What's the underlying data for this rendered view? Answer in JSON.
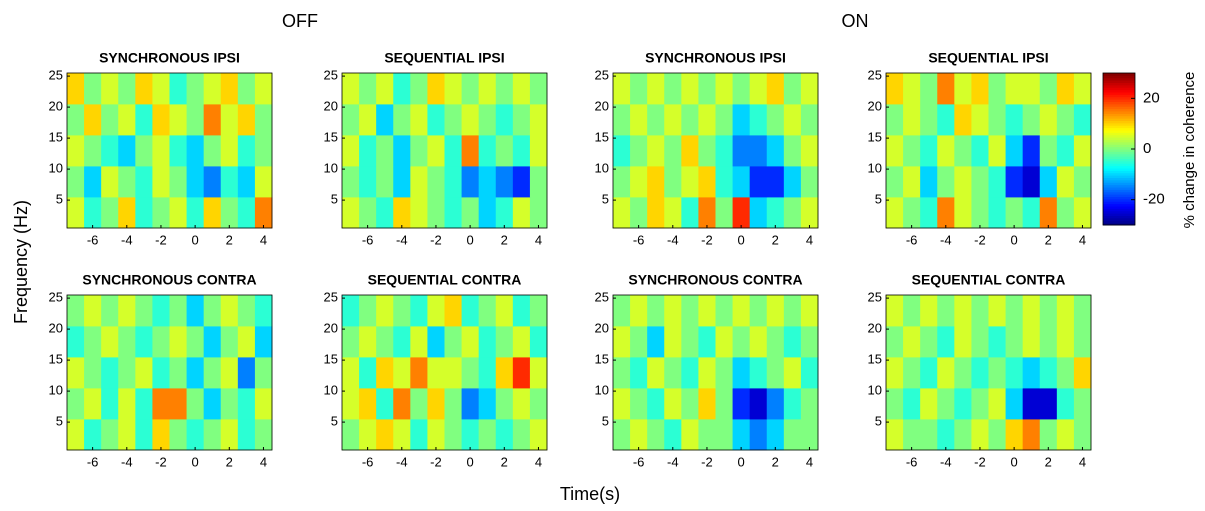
{
  "group_labels": [
    "OFF",
    "ON"
  ],
  "xlabel": "Time(s)",
  "ylabel": "Frequency (Hz)",
  "colorbar": {
    "label": "% change in coherence",
    "zlim": [
      -30,
      30
    ],
    "ticks": [
      20,
      0,
      -20
    ],
    "colormap": "jet"
  },
  "chart_data": [
    {
      "type": "heatmap",
      "title": "SYNCHRONOUS IPSI",
      "x": [
        -7,
        -6,
        -5,
        -4,
        -3,
        -2,
        -1,
        0,
        1,
        2,
        3,
        4
      ],
      "y": [
        3,
        8,
        13,
        18,
        23
      ],
      "xlim": [
        -7.5,
        4.5
      ],
      "ylim": [
        0.5,
        25.5
      ],
      "xticks": [
        -6,
        -4,
        -2,
        0,
        2,
        4
      ],
      "yticks": [
        5,
        10,
        15,
        20,
        25
      ],
      "z": [
        [
          5,
          -5,
          0,
          10,
          -5,
          0,
          5,
          -5,
          10,
          0,
          -5,
          15
        ],
        [
          0,
          -10,
          5,
          0,
          -5,
          5,
          0,
          -10,
          -15,
          -5,
          -10,
          5
        ],
        [
          5,
          0,
          -5,
          -10,
          0,
          5,
          -5,
          -10,
          0,
          5,
          -5,
          0
        ],
        [
          0,
          10,
          0,
          5,
          -5,
          10,
          5,
          0,
          15,
          5,
          10,
          0
        ],
        [
          10,
          0,
          5,
          0,
          10,
          5,
          -5,
          0,
          5,
          10,
          0,
          5
        ]
      ]
    },
    {
      "type": "heatmap",
      "title": "SEQUENTIAL IPSI",
      "x": [
        -7,
        -6,
        -5,
        -4,
        -3,
        -2,
        -1,
        0,
        1,
        2,
        3,
        4
      ],
      "y": [
        3,
        8,
        13,
        18,
        23
      ],
      "xlim": [
        -7.5,
        4.5
      ],
      "ylim": [
        0.5,
        25.5
      ],
      "xticks": [
        -6,
        -4,
        -2,
        0,
        2,
        4
      ],
      "yticks": [
        5,
        10,
        15,
        20,
        25
      ],
      "z": [
        [
          5,
          0,
          -5,
          10,
          5,
          0,
          -5,
          0,
          -10,
          -5,
          5,
          0
        ],
        [
          0,
          -5,
          0,
          -10,
          5,
          0,
          -5,
          -15,
          -10,
          -15,
          -20,
          0
        ],
        [
          5,
          -5,
          0,
          -10,
          0,
          5,
          -5,
          15,
          -5,
          0,
          -5,
          5
        ],
        [
          0,
          5,
          -10,
          0,
          5,
          -5,
          0,
          5,
          0,
          -5,
          0,
          5
        ],
        [
          5,
          0,
          5,
          -5,
          0,
          10,
          5,
          0,
          5,
          0,
          5,
          0
        ]
      ]
    },
    {
      "type": "heatmap",
      "title": "SYNCHRONOUS IPSI",
      "x": [
        -7,
        -6,
        -5,
        -4,
        -3,
        -2,
        -1,
        0,
        1,
        2,
        3,
        4
      ],
      "y": [
        3,
        8,
        13,
        18,
        23
      ],
      "xlim": [
        -7.5,
        4.5
      ],
      "ylim": [
        0.5,
        25.5
      ],
      "xticks": [
        -6,
        -4,
        -2,
        0,
        2,
        4
      ],
      "yticks": [
        5,
        10,
        15,
        20,
        25
      ],
      "z": [
        [
          5,
          0,
          10,
          5,
          -5,
          15,
          0,
          20,
          -10,
          -5,
          0,
          5
        ],
        [
          0,
          5,
          10,
          0,
          5,
          10,
          -5,
          -10,
          -20,
          -20,
          -10,
          0
        ],
        [
          -5,
          0,
          5,
          0,
          10,
          0,
          -5,
          -15,
          -15,
          -10,
          0,
          5
        ],
        [
          0,
          5,
          0,
          5,
          0,
          5,
          0,
          -10,
          -5,
          0,
          5,
          0
        ],
        [
          5,
          0,
          5,
          0,
          5,
          0,
          5,
          0,
          5,
          10,
          0,
          5
        ]
      ]
    },
    {
      "type": "heatmap",
      "title": "SEQUENTIAL IPSI",
      "x": [
        -7,
        -6,
        -5,
        -4,
        -3,
        -2,
        -1,
        0,
        1,
        2,
        3,
        4
      ],
      "y": [
        3,
        8,
        13,
        18,
        23
      ],
      "xlim": [
        -7.5,
        4.5
      ],
      "ylim": [
        0.5,
        25.5
      ],
      "xticks": [
        -6,
        -4,
        -2,
        0,
        2,
        4
      ],
      "yticks": [
        5,
        10,
        15,
        20,
        25
      ],
      "z": [
        [
          5,
          0,
          -5,
          15,
          5,
          0,
          -5,
          0,
          -5,
          15,
          0,
          5
        ],
        [
          0,
          5,
          -10,
          0,
          5,
          0,
          -5,
          -20,
          -25,
          -10,
          5,
          0
        ],
        [
          5,
          0,
          -5,
          5,
          0,
          -5,
          5,
          -10,
          -20,
          0,
          -5,
          5
        ],
        [
          0,
          5,
          0,
          -5,
          10,
          5,
          0,
          -5,
          0,
          5,
          0,
          -5
        ],
        [
          10,
          5,
          0,
          15,
          5,
          10,
          0,
          5,
          5,
          0,
          10,
          5
        ]
      ]
    },
    {
      "type": "heatmap",
      "title": "SYNCHRONOUS CONTRA",
      "x": [
        -7,
        -6,
        -5,
        -4,
        -3,
        -2,
        -1,
        0,
        1,
        2,
        3,
        4
      ],
      "y": [
        3,
        8,
        13,
        18,
        23
      ],
      "xlim": [
        -7.5,
        4.5
      ],
      "ylim": [
        0.5,
        25.5
      ],
      "xticks": [
        -6,
        -4,
        -2,
        0,
        2,
        4
      ],
      "yticks": [
        5,
        10,
        15,
        20,
        25
      ],
      "z": [
        [
          5,
          -5,
          0,
          5,
          -5,
          10,
          0,
          -5,
          0,
          5,
          -5,
          0
        ],
        [
          0,
          5,
          -5,
          5,
          -5,
          15,
          15,
          0,
          -10,
          0,
          -5,
          5
        ],
        [
          5,
          0,
          -5,
          0,
          5,
          -5,
          0,
          -10,
          0,
          5,
          -15,
          0
        ],
        [
          -5,
          0,
          5,
          0,
          -5,
          0,
          5,
          0,
          -10,
          0,
          5,
          -10
        ],
        [
          0,
          5,
          0,
          5,
          0,
          -5,
          0,
          -10,
          0,
          5,
          0,
          -5
        ]
      ]
    },
    {
      "type": "heatmap",
      "title": "SEQUENTIAL CONTRA",
      "x": [
        -7,
        -6,
        -5,
        -4,
        -3,
        -2,
        -1,
        0,
        1,
        2,
        3,
        4
      ],
      "y": [
        3,
        8,
        13,
        18,
        23
      ],
      "xlim": [
        -7.5,
        4.5
      ],
      "ylim": [
        0.5,
        25.5
      ],
      "xticks": [
        -6,
        -4,
        -2,
        0,
        2,
        4
      ],
      "yticks": [
        5,
        10,
        15,
        20,
        25
      ],
      "z": [
        [
          0,
          5,
          10,
          5,
          -5,
          5,
          0,
          -5,
          0,
          -5,
          0,
          5
        ],
        [
          5,
          10,
          -5,
          15,
          0,
          10,
          0,
          -15,
          -10,
          0,
          5,
          0
        ],
        [
          5,
          -5,
          10,
          5,
          15,
          5,
          5,
          0,
          -5,
          10,
          20,
          5
        ],
        [
          0,
          5,
          0,
          -5,
          5,
          -10,
          0,
          5,
          -5,
          0,
          5,
          -5
        ],
        [
          -5,
          0,
          5,
          0,
          -5,
          5,
          10,
          -5,
          0,
          5,
          -5,
          0
        ]
      ]
    },
    {
      "type": "heatmap",
      "title": "SYNCHRONOUS CONTRA",
      "x": [
        -7,
        -6,
        -5,
        -4,
        -3,
        -2,
        -1,
        0,
        1,
        2,
        3,
        4
      ],
      "y": [
        3,
        8,
        13,
        18,
        23
      ],
      "xlim": [
        -7.5,
        4.5
      ],
      "ylim": [
        0.5,
        25.5
      ],
      "xticks": [
        -6,
        -4,
        -2,
        0,
        2,
        4
      ],
      "yticks": [
        5,
        10,
        15,
        20,
        25
      ],
      "z": [
        [
          0,
          5,
          0,
          -5,
          5,
          0,
          0,
          -10,
          -15,
          -10,
          0,
          0
        ],
        [
          5,
          0,
          -5,
          5,
          0,
          10,
          0,
          -20,
          -25,
          -15,
          -5,
          0
        ],
        [
          0,
          -5,
          5,
          0,
          -5,
          5,
          0,
          -10,
          -5,
          0,
          5,
          -5
        ],
        [
          5,
          0,
          -10,
          5,
          0,
          -5,
          5,
          0,
          5,
          0,
          -5,
          0
        ],
        [
          0,
          5,
          0,
          5,
          0,
          5,
          0,
          5,
          0,
          5,
          0,
          5
        ]
      ]
    },
    {
      "type": "heatmap",
      "title": "SEQUENTIAL CONTRA",
      "x": [
        -7,
        -6,
        -5,
        -4,
        -3,
        -2,
        -1,
        0,
        1,
        2,
        3,
        4
      ],
      "y": [
        3,
        8,
        13,
        18,
        23
      ],
      "xlim": [
        -7.5,
        4.5
      ],
      "ylim": [
        0.5,
        25.5
      ],
      "xticks": [
        -6,
        -4,
        -2,
        0,
        2,
        4
      ],
      "yticks": [
        5,
        10,
        15,
        20,
        25
      ],
      "z": [
        [
          5,
          0,
          0,
          -5,
          0,
          5,
          0,
          10,
          15,
          0,
          5,
          0
        ],
        [
          0,
          -5,
          5,
          0,
          -5,
          0,
          5,
          -10,
          -25,
          -25,
          -5,
          0
        ],
        [
          5,
          0,
          -5,
          5,
          0,
          -5,
          0,
          -5,
          -10,
          -5,
          0,
          10
        ],
        [
          0,
          5,
          0,
          -5,
          5,
          0,
          -5,
          0,
          5,
          0,
          5,
          0
        ],
        [
          5,
          0,
          5,
          0,
          5,
          0,
          5,
          0,
          5,
          0,
          5,
          0
        ]
      ]
    }
  ]
}
